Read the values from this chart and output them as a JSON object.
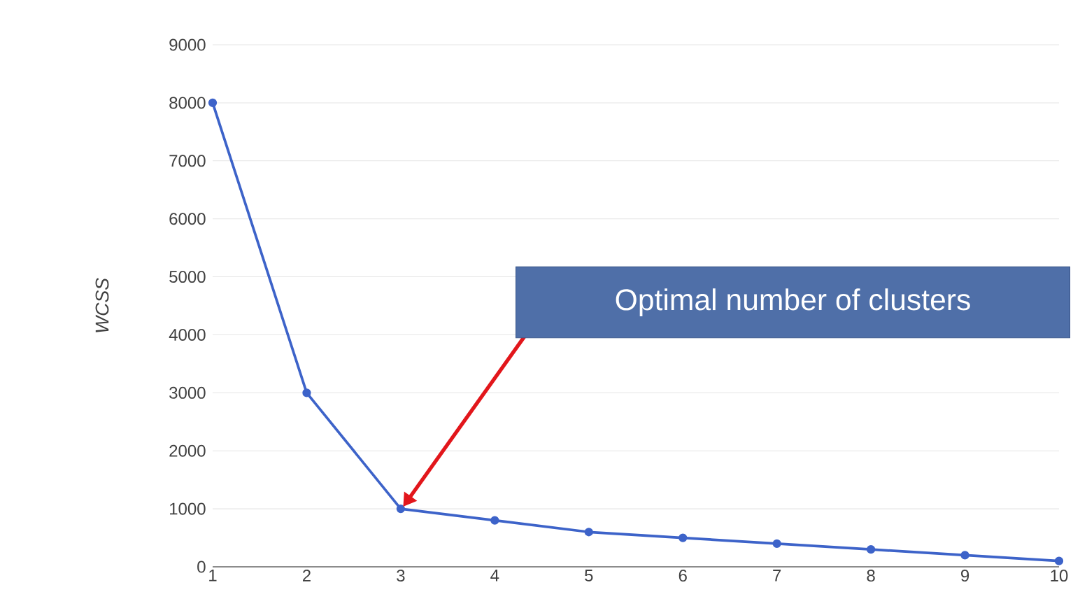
{
  "chart_data": {
    "type": "line",
    "ylabel": "WCSS",
    "x": [
      1,
      2,
      3,
      4,
      5,
      6,
      7,
      8,
      9,
      10
    ],
    "values": [
      8000,
      3000,
      1000,
      800,
      600,
      500,
      400,
      300,
      200,
      100
    ],
    "color": "#3d63c9",
    "marker": "circle",
    "grid": "y",
    "xlim": [
      1,
      10
    ],
    "ylim": [
      0,
      9000
    ],
    "xticks": [
      1,
      2,
      3,
      4,
      5,
      6,
      7,
      8,
      9,
      10
    ],
    "yticks": [
      0,
      1000,
      2000,
      3000,
      4000,
      5000,
      6000,
      7000,
      8000,
      9000
    ],
    "annotations": [
      "Optimal number of clusters"
    ]
  }
}
